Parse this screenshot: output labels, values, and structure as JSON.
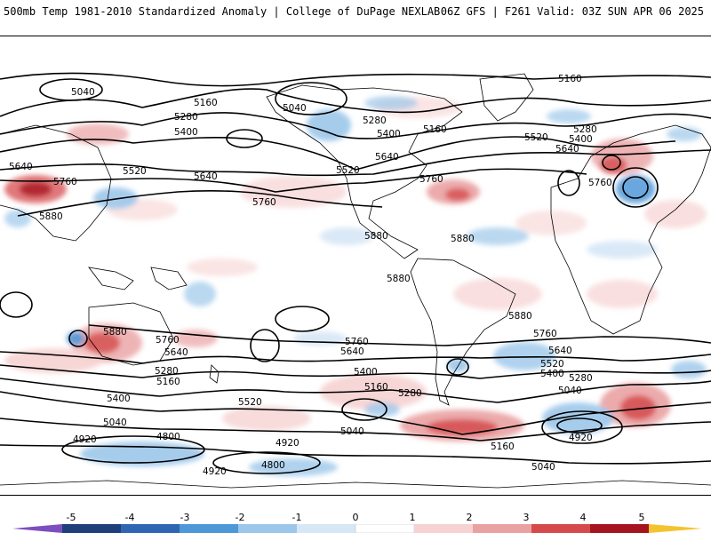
{
  "header": {
    "title": "500mb Temp 1981-2010 Standardized Anomaly | College of DuPage NEXLAB",
    "run": "06Z GFS | F261 Valid: 03Z SUN APR 06 2025"
  },
  "map": {
    "contour_labels": [
      "5040",
      "5160",
      "5280",
      "5400",
      "5520",
      "5640",
      "5760",
      "5880",
      "4920",
      "4800"
    ]
  },
  "colorbar": {
    "ticks": [
      "-5",
      "-4",
      "-3",
      "-2",
      "-1",
      "0",
      "1",
      "2",
      "3",
      "4",
      "5"
    ],
    "colors": [
      "#7d4fbe",
      "#1f3f7a",
      "#2e66b3",
      "#4f98d8",
      "#9cc7ea",
      "#d6e7f6",
      "#ffffff",
      "#f6d2d2",
      "#eaa1a2",
      "#d54b4c",
      "#a61420",
      "#6e0c12",
      "#f4c430"
    ]
  }
}
